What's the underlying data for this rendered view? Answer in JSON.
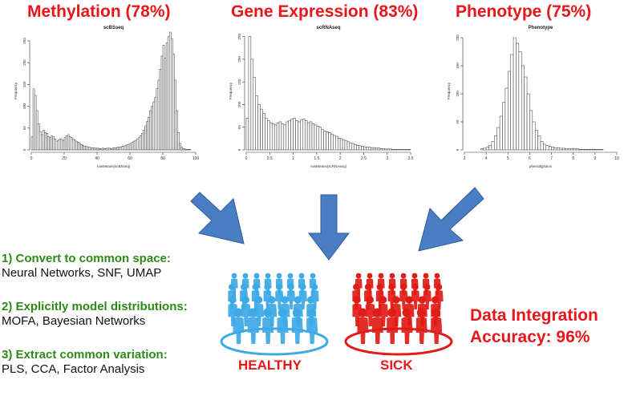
{
  "headings": {
    "methylation": "Methylation (78%)",
    "expression": "Gene Expression (83%)",
    "phenotype": "Phenotype (75%)"
  },
  "colors": {
    "accent": "#e8161b",
    "strategy": "#2e8b17",
    "arrow": "#4a7ec4",
    "healthy": "#3da9e6",
    "sick": "#e11b16"
  },
  "chart_data": [
    {
      "type": "bar",
      "title": "scBSseq",
      "xlabel": "rowMeans(scBSseq)",
      "ylabel": "Frequency",
      "xlim": [
        0,
        100
      ],
      "ylim": [
        0,
        270
      ],
      "xticks": [
        0,
        20,
        40,
        60,
        80,
        100
      ],
      "yticks": [
        0,
        50,
        100,
        150,
        200,
        250
      ],
      "bin_start": 0,
      "bin_width": 1,
      "values": [
        30,
        140,
        125,
        90,
        60,
        42,
        35,
        45,
        40,
        38,
        30,
        28,
        32,
        30,
        25,
        20,
        22,
        25,
        24,
        22,
        28,
        32,
        35,
        30,
        28,
        25,
        22,
        20,
        18,
        15,
        12,
        10,
        8,
        8,
        7,
        6,
        5,
        5,
        4,
        4,
        4,
        3,
        3,
        4,
        3,
        3,
        4,
        4,
        3,
        4,
        5,
        5,
        6,
        6,
        7,
        8,
        9,
        10,
        12,
        13,
        15,
        17,
        20,
        22,
        25,
        28,
        32,
        38,
        45,
        55,
        65,
        75,
        90,
        100,
        110,
        120,
        140,
        160,
        185,
        215,
        240,
        210,
        245,
        260,
        270,
        255,
        220,
        160,
        90,
        40,
        15,
        6,
        3,
        2,
        1,
        1,
        1,
        0,
        0,
        0
      ]
    },
    {
      "type": "bar",
      "title": "scRNAseq",
      "xlabel": "rowMeans(scRNAseq)",
      "ylabel": "Frequency",
      "xlim": [
        0,
        3.5
      ],
      "ylim": [
        0,
        260
      ],
      "xticks": [
        0.0,
        0.5,
        1.0,
        1.5,
        2.0,
        2.5,
        3.0,
        3.5
      ],
      "yticks": [
        0,
        50,
        100,
        150,
        200,
        250
      ],
      "bin_start": 0,
      "bin_width": 0.05,
      "values": [
        70,
        250,
        200,
        160,
        120,
        100,
        90,
        80,
        70,
        65,
        60,
        58,
        55,
        60,
        62,
        58,
        55,
        62,
        65,
        68,
        70,
        65,
        62,
        66,
        68,
        65,
        60,
        62,
        58,
        55,
        52,
        50,
        45,
        42,
        40,
        38,
        35,
        32,
        30,
        26,
        25,
        22,
        20,
        18,
        15,
        14,
        12,
        10,
        9,
        8,
        7,
        6,
        6,
        5,
        5,
        4,
        4,
        3,
        3,
        2,
        2,
        2,
        1,
        1,
        1,
        1,
        1,
        1,
        1,
        1
      ]
    },
    {
      "type": "bar",
      "title": "Phenotype",
      "xlabel": "pheno$glukos",
      "ylabel": "Frequency",
      "xlim": [
        3,
        10
      ],
      "ylim": [
        0,
        210
      ],
      "xticks": [
        3,
        4,
        5,
        6,
        7,
        8,
        9,
        10
      ],
      "yticks": [
        0,
        50,
        100,
        150,
        200
      ],
      "bin_start": 3.75,
      "bin_width": 0.125,
      "values": [
        2,
        3,
        5,
        8,
        15,
        25,
        40,
        60,
        85,
        110,
        140,
        170,
        200,
        190,
        175,
        150,
        130,
        100,
        70,
        50,
        35,
        25,
        15,
        10,
        8,
        6,
        5,
        4,
        4,
        3,
        3,
        2,
        2,
        2,
        2,
        2,
        1,
        1,
        1,
        1,
        1,
        1,
        1,
        1,
        1
      ]
    }
  ],
  "strategies": [
    {
      "title": "1) Convert to common space:",
      "methods": "Neural Networks, SNF, UMAP"
    },
    {
      "title": "2) Explicitly model distributions:",
      "methods": "MOFA, Bayesian Networks"
    },
    {
      "title": "3) Extract common variation:",
      "methods": "PLS, CCA, Factor Analysis"
    }
  ],
  "result": {
    "line1": "Data Integration",
    "line2": "Accuracy: 96%"
  },
  "groups": {
    "healthy": "HEALTHY",
    "sick": "SICK"
  }
}
